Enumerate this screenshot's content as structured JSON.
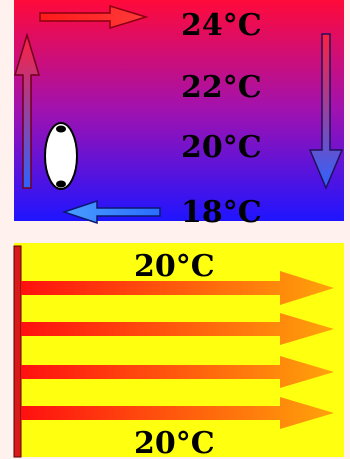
{
  "top_panel": {
    "gradient_top_color": "#ff0a3a",
    "gradient_bottom_color": "#1f14ff",
    "temperatures": [
      "24°C",
      "22°C",
      "20°C",
      "18°C"
    ],
    "radiator_icon": "radiator-icon",
    "arrow_colors": {
      "up_arrow": "#ff2b2b",
      "top_arrow": "#ff1a1a",
      "right_arrow": "#2d5bff",
      "bottom_arrow": "#2a6dff"
    }
  },
  "bottom_panel": {
    "background_color": "#ffff10",
    "wall_color": "#d81a1a",
    "arrow_start_color": "#ff1010",
    "arrow_end_color": "#ffa30a",
    "top_label": "20°C",
    "bottom_label": "20°C",
    "arrow_count": 4
  }
}
